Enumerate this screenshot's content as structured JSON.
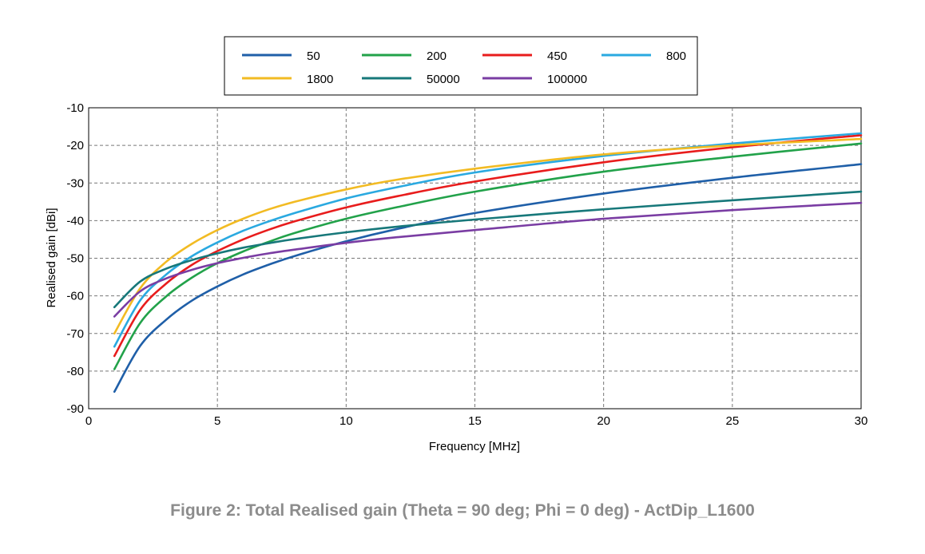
{
  "figure_caption": "Figure 2: Total Realised gain (Theta = 90 deg; Phi = 0 deg) - ActDip_L1600",
  "chart_data": {
    "type": "line",
    "title": "",
    "xlabel": "Frequency [MHz]",
    "ylabel": "Realised gain [dBi]",
    "xlim": [
      0,
      30
    ],
    "ylim": [
      -90,
      -10
    ],
    "xticks": [
      0,
      5,
      10,
      15,
      20,
      25,
      30
    ],
    "yticks": [
      -10,
      -20,
      -30,
      -40,
      -50,
      -60,
      -70,
      -80,
      -90
    ],
    "grid": true,
    "legend_position": "top-center",
    "x": [
      1,
      2,
      3,
      4,
      5,
      6,
      7,
      8,
      10,
      12,
      15,
      20,
      25,
      30
    ],
    "series": [
      {
        "name": "50",
        "color": "#1f5fa8",
        "values": [
          -85.5,
          -73.3,
          -66.4,
          -61.3,
          -57.5,
          -54.3,
          -51.7,
          -49.4,
          -45.5,
          -42.2,
          -38.0,
          -32.8,
          -28.6,
          -25.0
        ]
      },
      {
        "name": "200",
        "color": "#22a24a",
        "values": [
          -79.5,
          -67.2,
          -60.2,
          -55.2,
          -51.3,
          -48.2,
          -45.6,
          -43.3,
          -39.5,
          -36.4,
          -32.3,
          -27.0,
          -23.0,
          -19.5
        ]
      },
      {
        "name": "450",
        "color": "#e81c1c",
        "values": [
          -76.0,
          -63.7,
          -56.8,
          -51.8,
          -48.1,
          -45.0,
          -42.4,
          -40.2,
          -36.5,
          -33.5,
          -29.6,
          -24.5,
          -20.5,
          -17.3
        ]
      },
      {
        "name": "800",
        "color": "#2aa9e0",
        "values": [
          -73.5,
          -61.2,
          -54.4,
          -49.5,
          -45.8,
          -42.7,
          -40.2,
          -38.0,
          -34.1,
          -31.1,
          -27.2,
          -22.8,
          -19.5,
          -16.8
        ]
      },
      {
        "name": "1800",
        "color": "#f2bb23",
        "values": [
          -70.0,
          -58.0,
          -51.0,
          -46.2,
          -42.5,
          -39.5,
          -37.0,
          -35.0,
          -31.7,
          -29.1,
          -26.2,
          -22.4,
          -20.0,
          -18.3
        ]
      },
      {
        "name": "50000",
        "color": "#17787a",
        "values": [
          -63.0,
          -56.2,
          -52.8,
          -50.5,
          -48.7,
          -47.2,
          -46.0,
          -44.9,
          -43.1,
          -41.6,
          -39.7,
          -37.0,
          -34.6,
          -32.3
        ]
      },
      {
        "name": "100000",
        "color": "#7a3da3",
        "values": [
          -65.5,
          -58.8,
          -55.4,
          -53.1,
          -51.3,
          -49.9,
          -48.7,
          -47.7,
          -45.9,
          -44.4,
          -42.5,
          -39.5,
          -37.2,
          -35.3
        ]
      }
    ]
  }
}
